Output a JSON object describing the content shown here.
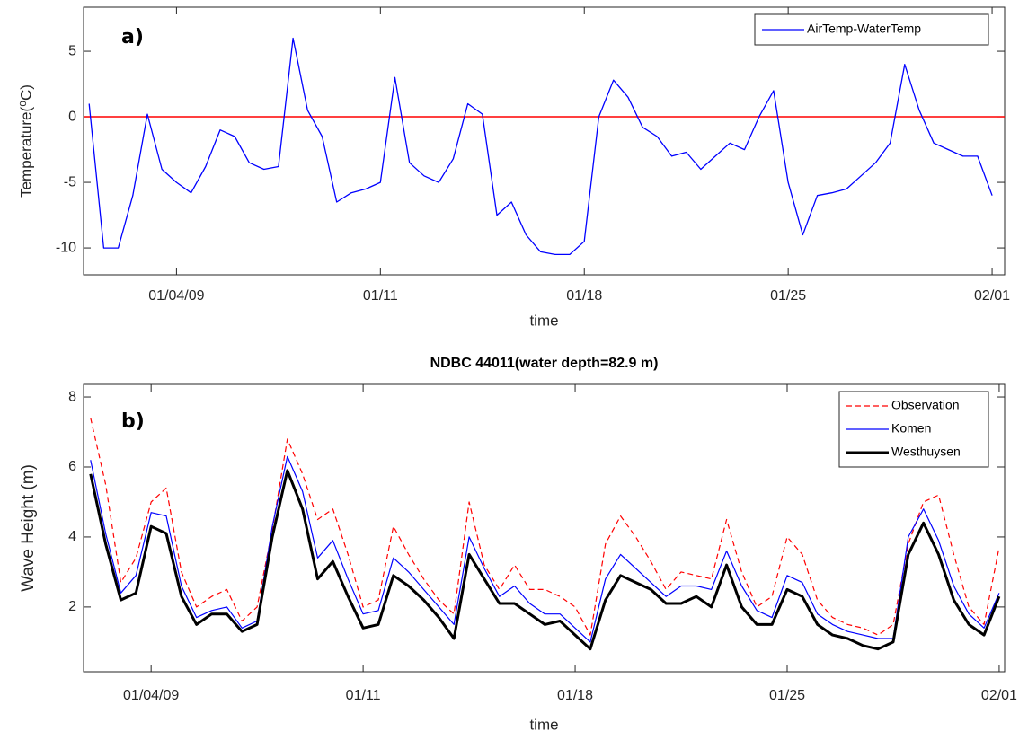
{
  "chart_data": [
    {
      "type": "line",
      "annotation": "a)",
      "xlabel": "time",
      "ylabel": "Temperature(⁰C)",
      "xlim": [
        0.81,
        32.43
      ],
      "ylim": [
        -12.05,
        8.36
      ],
      "xticks": [
        {
          "value": 4,
          "label": "01/04/09"
        },
        {
          "value": 11,
          "label": "01/11"
        },
        {
          "value": 18,
          "label": "01/18"
        },
        {
          "value": 25,
          "label": "01/25"
        },
        {
          "value": 32,
          "label": "02/01"
        }
      ],
      "yticks": [
        -10,
        -5,
        0,
        5
      ],
      "legend": "upper right",
      "reference_line": {
        "value": 0,
        "color": "#ff0000"
      },
      "x": [
        1,
        1.5,
        2,
        2.5,
        3,
        3.5,
        4,
        4.5,
        5,
        5.5,
        6,
        6.5,
        7,
        7.5,
        8,
        8.5,
        9,
        9.5,
        10,
        10.5,
        11,
        11.5,
        12,
        12.5,
        13,
        13.5,
        14,
        14.5,
        15,
        15.5,
        16,
        16.5,
        17,
        17.5,
        18,
        18.5,
        19,
        19.5,
        20,
        20.5,
        21,
        21.5,
        22,
        22.5,
        23,
        23.5,
        24,
        24.5,
        25,
        25.5,
        26,
        26.5,
        27,
        27.5,
        28,
        28.5,
        29,
        29.5,
        30,
        30.5,
        31,
        31.5,
        32
      ],
      "series": [
        {
          "name": "AirTemp-WaterTemp",
          "color": "#0000ff",
          "style": "solid",
          "width": 1.3,
          "values": [
            1,
            -10,
            -10,
            -6,
            0.2,
            -4,
            -5,
            -5.8,
            -3.8,
            -1,
            -1.5,
            -3.5,
            -4,
            -3.8,
            6,
            0.5,
            -1.5,
            -6.5,
            -5.8,
            -5.5,
            -5,
            3,
            -3.5,
            -4.5,
            -5,
            -3.2,
            1,
            0.2,
            -7.5,
            -6.5,
            -9,
            -10.3,
            -10.5,
            -10.5,
            -9.5,
            0,
            2.8,
            1.5,
            -0.8,
            -1.5,
            -3,
            -2.7,
            -4,
            -3,
            -2,
            -2.5,
            0,
            2,
            -5,
            -9,
            -6,
            -5.8,
            -5.5,
            -4.5,
            -3.5,
            -2,
            4,
            0.5,
            -2,
            -2.5,
            -3,
            -3,
            -6
          ]
        }
      ]
    },
    {
      "type": "line",
      "annotation": "b)",
      "title": "NDBC 44011(water depth=82.9 m)",
      "xlabel": "time",
      "ylabel": "Wave Height (m)",
      "xlim": [
        1.77,
        32.18
      ],
      "ylim": [
        0.15,
        8.36
      ],
      "xticks": [
        {
          "value": 4,
          "label": "01/04/09"
        },
        {
          "value": 11,
          "label": "01/11"
        },
        {
          "value": 18,
          "label": "01/18"
        },
        {
          "value": 25,
          "label": "01/25"
        },
        {
          "value": 32,
          "label": "02/01"
        }
      ],
      "yticks": [
        2,
        4,
        6,
        8
      ],
      "legend": "upper right",
      "x": [
        2,
        2.5,
        3,
        3.5,
        4,
        4.5,
        5,
        5.5,
        6,
        6.5,
        7,
        7.5,
        8,
        8.5,
        9,
        9.5,
        10,
        10.5,
        11,
        11.5,
        12,
        12.5,
        13,
        13.5,
        14,
        14.5,
        15,
        15.5,
        16,
        16.5,
        17,
        17.5,
        18,
        18.5,
        19,
        19.5,
        20,
        20.5,
        21,
        21.5,
        22,
        22.5,
        23,
        23.5,
        24,
        24.5,
        25,
        25.5,
        26,
        26.5,
        27,
        27.5,
        28,
        28.5,
        29,
        29.5,
        30,
        30.5,
        31,
        31.5,
        32
      ],
      "series": [
        {
          "name": "Observation",
          "color": "#ff0000",
          "style": "dashed",
          "width": 1.2,
          "values": [
            7.4,
            5.5,
            2.7,
            3.4,
            5.0,
            5.4,
            3.0,
            2.0,
            2.3,
            2.5,
            1.6,
            2.0,
            4.2,
            6.8,
            5.8,
            4.5,
            4.8,
            3.5,
            2.0,
            2.2,
            4.3,
            3.5,
            2.8,
            2.2,
            1.8,
            5.0,
            3.2,
            2.5,
            3.2,
            2.5,
            2.5,
            2.3,
            2.0,
            1.2,
            3.8,
            4.6,
            4.0,
            3.3,
            2.5,
            3.0,
            2.9,
            2.8,
            4.5,
            3.0,
            2.0,
            2.3,
            4.0,
            3.5,
            2.2,
            1.7,
            1.5,
            1.4,
            1.2,
            1.5,
            3.8,
            5.0,
            5.2,
            3.5,
            2.0,
            1.5,
            3.7
          ]
        },
        {
          "name": "Komen",
          "color": "#0000ff",
          "style": "solid",
          "width": 1.2,
          "values": [
            6.2,
            4.1,
            2.4,
            2.9,
            4.7,
            4.6,
            2.6,
            1.7,
            1.9,
            2.0,
            1.4,
            1.6,
            4.3,
            6.3,
            5.3,
            3.4,
            3.9,
            2.8,
            1.8,
            1.9,
            3.4,
            3.0,
            2.5,
            2.0,
            1.5,
            4.0,
            3.1,
            2.3,
            2.6,
            2.1,
            1.8,
            1.8,
            1.4,
            1.0,
            2.8,
            3.5,
            3.1,
            2.7,
            2.3,
            2.6,
            2.6,
            2.5,
            3.6,
            2.6,
            1.9,
            1.7,
            2.9,
            2.7,
            1.8,
            1.5,
            1.3,
            1.2,
            1.1,
            1.1,
            4.0,
            4.8,
            3.9,
            2.6,
            1.8,
            1.4,
            2.4
          ]
        },
        {
          "name": "Westhuysen",
          "color": "#000000",
          "style": "solid",
          "width": 3,
          "values": [
            5.8,
            3.8,
            2.2,
            2.4,
            4.3,
            4.1,
            2.3,
            1.5,
            1.8,
            1.8,
            1.3,
            1.5,
            4.0,
            5.9,
            4.8,
            2.8,
            3.3,
            2.3,
            1.4,
            1.5,
            2.9,
            2.6,
            2.2,
            1.7,
            1.1,
            3.5,
            2.8,
            2.1,
            2.1,
            1.8,
            1.5,
            1.6,
            1.2,
            0.8,
            2.2,
            2.9,
            2.7,
            2.5,
            2.1,
            2.1,
            2.3,
            2.0,
            3.2,
            2.0,
            1.5,
            1.5,
            2.5,
            2.3,
            1.5,
            1.2,
            1.1,
            0.9,
            0.8,
            1.0,
            3.5,
            4.4,
            3.5,
            2.2,
            1.5,
            1.2,
            2.3
          ]
        }
      ]
    }
  ]
}
